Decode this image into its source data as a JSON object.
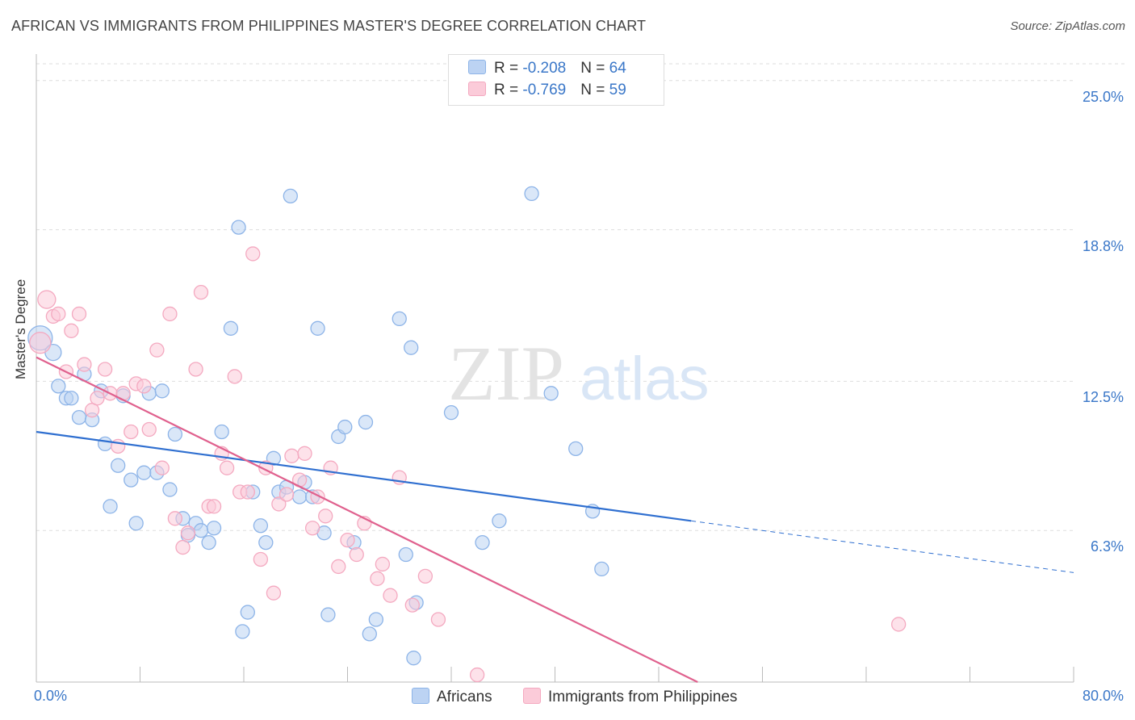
{
  "title": "AFRICAN VS IMMIGRANTS FROM PHILIPPINES MASTER'S DEGREE CORRELATION CHART",
  "source": "Source: ZipAtlas.com",
  "watermark": {
    "zip": "ZIP",
    "atlas": "atlas"
  },
  "chart_data": {
    "type": "scatter",
    "ylabel": "Master's Degree",
    "xlabel": "",
    "xlim": [
      0,
      80
    ],
    "ylim": [
      0,
      26
    ],
    "x_tick_labels": {
      "left": "0.0%",
      "right": "80.0%"
    },
    "y_ticks": [
      {
        "value": 25.0,
        "label": "25.0%"
      },
      {
        "value": 18.8,
        "label": "18.8%"
      },
      {
        "value": 12.5,
        "label": "12.5%"
      },
      {
        "value": 6.3,
        "label": "6.3%"
      }
    ],
    "legend": {
      "rows": [
        {
          "r_label": "R = ",
          "r_value": "-0.208",
          "n_label": "N = ",
          "n_value": "64"
        },
        {
          "r_label": "R = ",
          "r_value": "-0.769",
          "n_label": "N = ",
          "n_value": "59"
        }
      ]
    },
    "series": [
      {
        "name": "Africans",
        "color": "#8db4e8",
        "line_color": "#2f6fd0",
        "trend": {
          "x0": 0,
          "y0": 10.4,
          "x1": 50.5,
          "y1": 6.7,
          "dash_x1": 80,
          "dash_y1": 4.55
        },
        "points": [
          [
            0.3,
            14.3
          ],
          [
            1.3,
            13.7
          ],
          [
            1.7,
            12.3
          ],
          [
            2.3,
            11.8
          ],
          [
            2.7,
            11.8
          ],
          [
            3.3,
            11.0
          ],
          [
            4.3,
            10.9
          ],
          [
            3.7,
            12.8
          ],
          [
            5.0,
            12.1
          ],
          [
            5.3,
            9.9
          ],
          [
            5.7,
            7.3
          ],
          [
            6.3,
            9.0
          ],
          [
            6.7,
            11.9
          ],
          [
            7.3,
            8.4
          ],
          [
            7.7,
            6.6
          ],
          [
            8.3,
            8.7
          ],
          [
            8.7,
            12.0
          ],
          [
            9.3,
            8.7
          ],
          [
            9.7,
            12.1
          ],
          [
            10.3,
            8.0
          ],
          [
            10.7,
            10.3
          ],
          [
            11.3,
            6.8
          ],
          [
            11.7,
            6.1
          ],
          [
            12.3,
            6.6
          ],
          [
            12.7,
            6.3
          ],
          [
            13.3,
            5.8
          ],
          [
            13.7,
            6.4
          ],
          [
            14.3,
            10.4
          ],
          [
            15.0,
            14.7
          ],
          [
            15.6,
            18.9
          ],
          [
            15.9,
            2.1
          ],
          [
            16.3,
            2.9
          ],
          [
            16.7,
            7.9
          ],
          [
            17.3,
            6.5
          ],
          [
            17.7,
            5.8
          ],
          [
            18.3,
            9.3
          ],
          [
            18.7,
            7.9
          ],
          [
            19.3,
            8.1
          ],
          [
            19.6,
            20.2
          ],
          [
            20.3,
            7.7
          ],
          [
            20.7,
            8.3
          ],
          [
            21.3,
            7.7
          ],
          [
            21.7,
            14.7
          ],
          [
            22.2,
            6.2
          ],
          [
            22.5,
            2.8
          ],
          [
            23.3,
            10.2
          ],
          [
            23.8,
            10.6
          ],
          [
            24.5,
            5.8
          ],
          [
            25.4,
            10.8
          ],
          [
            25.7,
            2.0
          ],
          [
            26.2,
            2.6
          ],
          [
            28.0,
            15.1
          ],
          [
            28.5,
            5.3
          ],
          [
            28.9,
            13.9
          ],
          [
            29.1,
            1.0
          ],
          [
            29.3,
            3.3
          ],
          [
            32.0,
            11.2
          ],
          [
            34.4,
            5.8
          ],
          [
            35.7,
            6.7
          ],
          [
            38.2,
            20.3
          ],
          [
            39.7,
            12.0
          ],
          [
            41.6,
            9.7
          ],
          [
            42.9,
            7.1
          ],
          [
            43.6,
            4.7
          ]
        ]
      },
      {
        "name": "Immigrants from Philippines",
        "color": "#f4a9c0",
        "line_color": "#e0618e",
        "trend": {
          "x0": 0,
          "y0": 13.5,
          "x1": 51,
          "y1": 0
        },
        "points": [
          [
            0.3,
            14.1
          ],
          [
            0.8,
            15.9
          ],
          [
            1.3,
            15.2
          ],
          [
            1.7,
            15.3
          ],
          [
            2.3,
            12.9
          ],
          [
            2.7,
            14.6
          ],
          [
            3.3,
            15.3
          ],
          [
            3.7,
            13.2
          ],
          [
            4.3,
            11.3
          ],
          [
            4.7,
            11.8
          ],
          [
            5.3,
            13.0
          ],
          [
            5.7,
            12.0
          ],
          [
            6.3,
            9.8
          ],
          [
            6.7,
            12.0
          ],
          [
            7.3,
            10.4
          ],
          [
            7.7,
            12.4
          ],
          [
            8.3,
            12.3
          ],
          [
            8.7,
            10.5
          ],
          [
            9.3,
            13.8
          ],
          [
            9.7,
            8.9
          ],
          [
            10.3,
            15.3
          ],
          [
            10.7,
            6.8
          ],
          [
            11.3,
            5.6
          ],
          [
            11.7,
            6.2
          ],
          [
            12.3,
            13.0
          ],
          [
            12.7,
            16.2
          ],
          [
            13.3,
            7.3
          ],
          [
            13.7,
            7.3
          ],
          [
            14.3,
            9.5
          ],
          [
            14.7,
            8.9
          ],
          [
            15.3,
            12.7
          ],
          [
            15.7,
            7.9
          ],
          [
            16.3,
            7.9
          ],
          [
            16.7,
            17.8
          ],
          [
            17.3,
            5.1
          ],
          [
            17.7,
            8.9
          ],
          [
            18.3,
            3.7
          ],
          [
            18.7,
            7.4
          ],
          [
            19.3,
            7.8
          ],
          [
            19.7,
            9.4
          ],
          [
            20.3,
            8.4
          ],
          [
            20.7,
            9.5
          ],
          [
            21.3,
            6.4
          ],
          [
            21.7,
            7.7
          ],
          [
            22.3,
            6.9
          ],
          [
            22.7,
            8.9
          ],
          [
            23.3,
            4.8
          ],
          [
            24.0,
            5.9
          ],
          [
            24.7,
            5.3
          ],
          [
            25.3,
            6.6
          ],
          [
            26.3,
            4.3
          ],
          [
            26.7,
            4.9
          ],
          [
            27.3,
            3.6
          ],
          [
            28.0,
            8.5
          ],
          [
            29.0,
            3.2
          ],
          [
            30.0,
            4.4
          ],
          [
            31.0,
            2.6
          ],
          [
            34.0,
            0.3
          ],
          [
            66.5,
            2.4
          ]
        ]
      }
    ]
  }
}
